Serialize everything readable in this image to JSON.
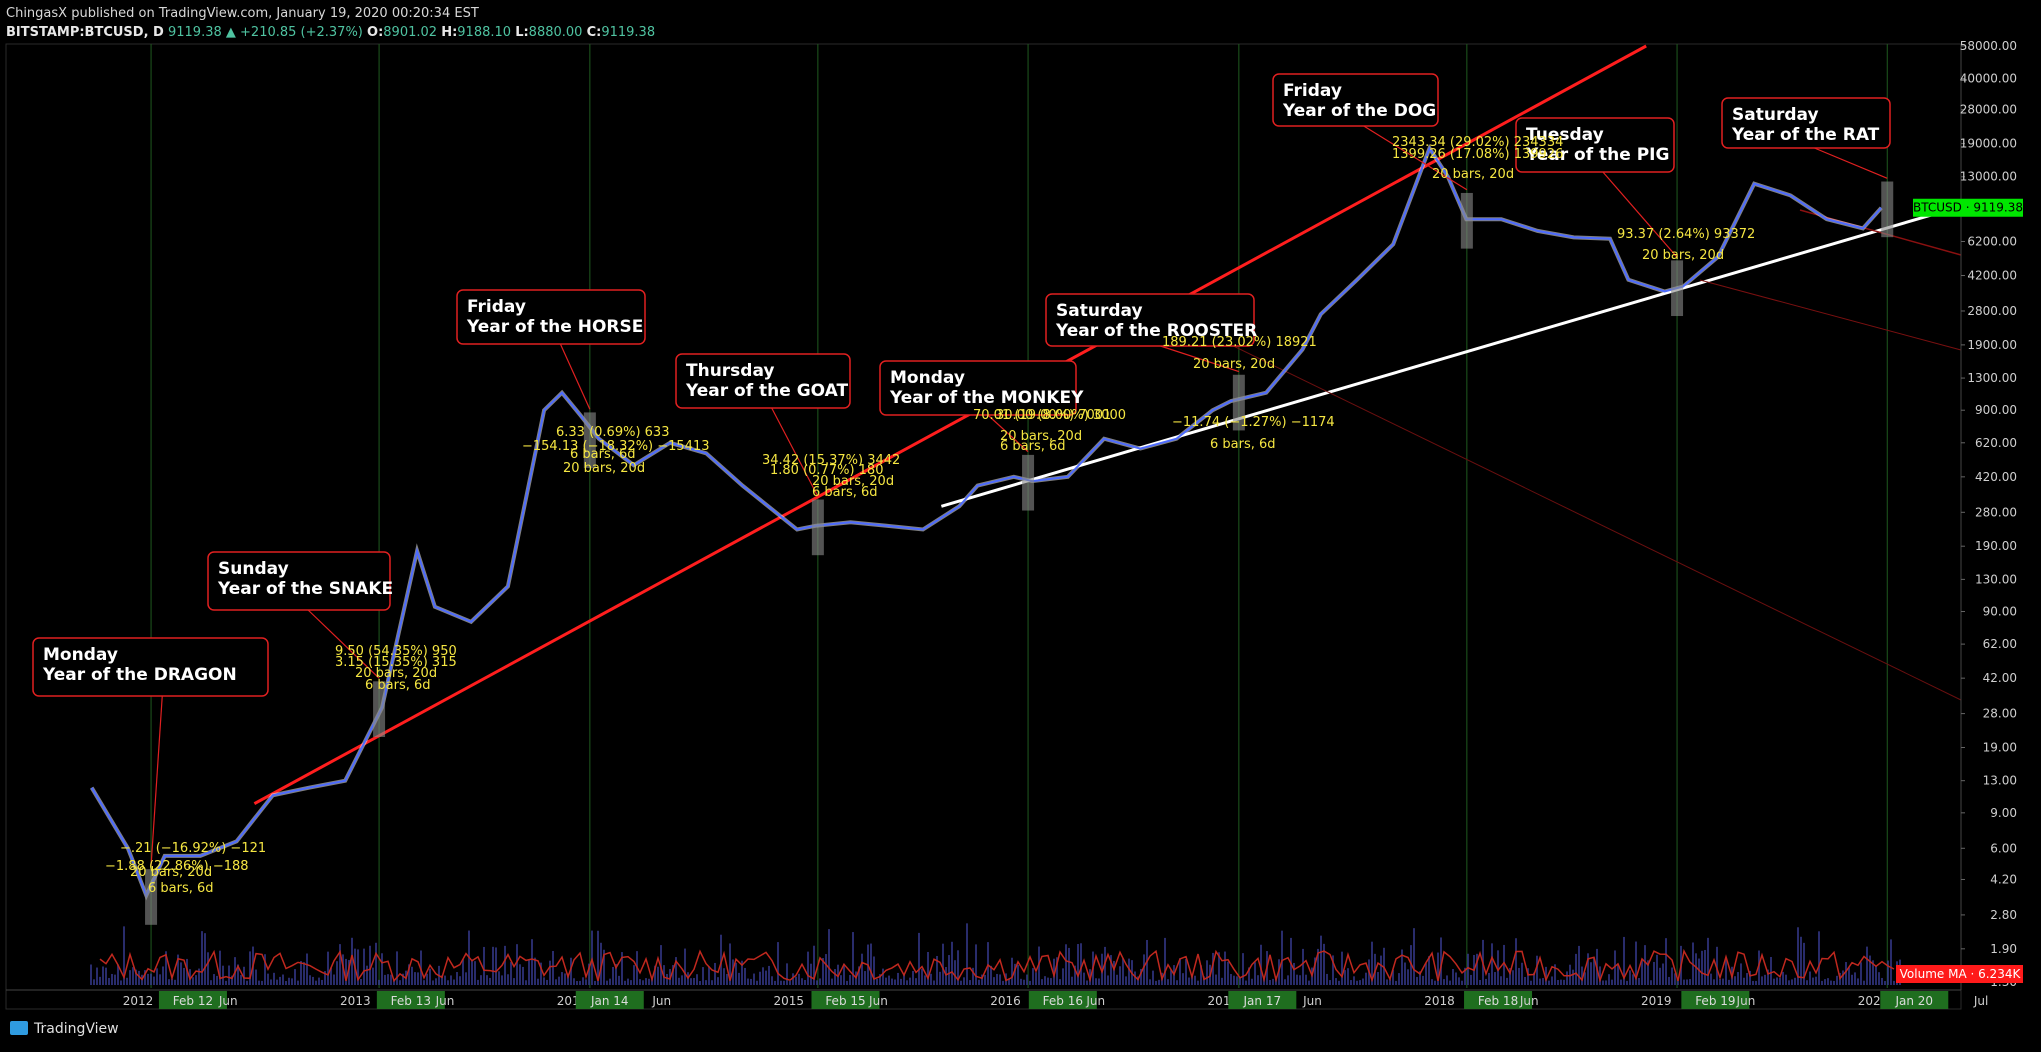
{
  "header": {
    "published": "ChingasX published on TradingView.com, January 19, 2020 00:20:34 EST",
    "symbol": "BITSTAMP:BTCUSD, D",
    "last": "9119.38",
    "change": "+210.85 (+2.37%)",
    "o_label": "O:",
    "o": "8901.02",
    "h_label": "H:",
    "h": "9188.10",
    "l_label": "L:",
    "l": "8880.00",
    "c_label": "C:",
    "c": "9119.38"
  },
  "footer": {
    "brand": "TradingView"
  },
  "colors": {
    "background": "#000000",
    "price": "#4d6bff",
    "uptrend": "#ff1e1e",
    "support": "#ffffff",
    "measure_text": "#f5e642",
    "callout_border": "#e02020",
    "marker": "#8a8a8a",
    "badge_price": "#00e600",
    "badge_volume": "#ff1a1a",
    "volume": "#3a3f9a",
    "volume_ma": "#c0281e",
    "vline": "#1f5a1f"
  },
  "chart_data": {
    "type": "line",
    "title": "",
    "y_scale": "log",
    "y_ticks": [
      "58000.00",
      "40000.00",
      "28000.00",
      "19000.00",
      "13000.00",
      "9000.00",
      "6200.00",
      "4200.00",
      "2800.00",
      "1900.00",
      "1300.00",
      "900.00",
      "620.00",
      "420.00",
      "280.00",
      "190.00",
      "130.00",
      "90.00",
      "62.00",
      "42.00",
      "28.00",
      "19.00",
      "13.00",
      "9.00",
      "6.00",
      "4.20",
      "2.80",
      "1.90",
      "1.30"
    ],
    "x_ticks": [
      "2012",
      "Feb 12",
      "Jun",
      "2013",
      "Feb 13",
      "Jun",
      "2014",
      "Jan 14",
      "Jun",
      "2015",
      "Feb 15",
      "Jun",
      "2016",
      "Feb 16",
      "Jun",
      "2017",
      "Jan 17",
      "Jun",
      "2018",
      "Feb 18",
      "Jun",
      "2019",
      "Feb 19",
      "Jun",
      "2020",
      "Jan 20",
      "Jul"
    ],
    "series": [
      {
        "name": "BTCUSD",
        "x": [
          "2011-10",
          "2011-12",
          "2012-01",
          "2012-02",
          "2012-04",
          "2012-06",
          "2012-08",
          "2012-10",
          "2012-12",
          "2013-02",
          "2013-04",
          "2013-05",
          "2013-07",
          "2013-09",
          "2013-11",
          "2013-12",
          "2014-01",
          "2014-02",
          "2014-04",
          "2014-06",
          "2014-08",
          "2014-10",
          "2015-01",
          "2015-02",
          "2015-04",
          "2015-06",
          "2015-08",
          "2015-10",
          "2015-11",
          "2016-01",
          "2016-02",
          "2016-04",
          "2016-06",
          "2016-08",
          "2016-10",
          "2016-12",
          "2017-01",
          "2017-03",
          "2017-05",
          "2017-06",
          "2017-08",
          "2017-10",
          "2017-12",
          "2018-01",
          "2018-02",
          "2018-04",
          "2018-06",
          "2018-08",
          "2018-10",
          "2018-11",
          "2019-01",
          "2019-02",
          "2019-04",
          "2019-06",
          "2019-08",
          "2019-10",
          "2019-12",
          "2020-01"
        ],
        "values": [
          12,
          6,
          3.5,
          5.5,
          5.5,
          6.5,
          11,
          12,
          13,
          30,
          180,
          95,
          80,
          120,
          900,
          1100,
          850,
          650,
          480,
          620,
          550,
          380,
          230,
          240,
          250,
          240,
          230,
          300,
          380,
          420,
          400,
          420,
          650,
          580,
          650,
          900,
          1000,
          1100,
          1800,
          2700,
          4000,
          6000,
          18000,
          13000,
          8000,
          8000,
          7000,
          6500,
          6400,
          4000,
          3500,
          3700,
          5200,
          12000,
          10500,
          8000,
          7200,
          9119
        ]
      }
    ],
    "uptrend_line": {
      "from": [
        "2012-07",
        10
      ],
      "to": [
        "2018-12",
        58000
      ]
    },
    "support_line": {
      "from": [
        "2015-09",
        300
      ],
      "to": [
        "2020-02",
        8500
      ]
    },
    "callouts": [
      {
        "day": "Monday",
        "year": "Year of the DRAGON",
        "date": "2012-01-23"
      },
      {
        "day": "Sunday",
        "year": "Year of the SNAKE",
        "date": "2013-02-10"
      },
      {
        "day": "Friday",
        "year": "Year of the HORSE",
        "date": "2014-01-31"
      },
      {
        "day": "Thursday",
        "year": "Year of the GOAT",
        "date": "2015-02-19"
      },
      {
        "day": "Monday",
        "year": "Year of the MONKEY",
        "date": "2016-02-08"
      },
      {
        "day": "Saturday",
        "year": "Year of the ROOSTER",
        "date": "2017-01-28"
      },
      {
        "day": "Friday",
        "year": "Year of the DOG",
        "date": "2018-02-16"
      },
      {
        "day": "Tuesday",
        "year": "Year of the PIG",
        "date": "2019-02-05"
      },
      {
        "day": "Saturday",
        "year": "Year of the RAT",
        "date": "2020-01-25"
      }
    ],
    "measurements": [
      "−.21 (−16.92%) −121",
      "−1.88 (22.86%) −188",
      "20 bars, 20d",
      "6 bars, 6d",
      "9.50 (54.35%) 950",
      "3.15 (15.35%) 315",
      "20 bars, 20d",
      "6 bars, 6d",
      "6.33 (0.69%) 633",
      "−154.13 (−18.32%) −15413",
      "6 bars, 6d",
      "20 bars, 20d",
      "34.42 (15.37%) 3442",
      "1.80 (0.77%) 180",
      "20 bars, 20d",
      "6 bars, 6d",
      "70.01 (19.00%) 7001",
      "30.00 (8.00%) 3000",
      "20 bars, 20d",
      "6 bars, 6d",
      "189.21 (23.02%) 18921",
      "20 bars, 20d",
      "−11.74 (−1.27%) −1174",
      "6 bars, 6d",
      "2343.34 (29.02%) 234334",
      "1399.26 (17.08%) 139926",
      "20 bars, 20d",
      "93.37 (2.64%) 93372",
      "20 bars, 20d"
    ],
    "price_badge": "BTCUSD · 9119.38",
    "volume_badge": "Volume MA · 6.234K",
    "legend": "none",
    "grid": false
  }
}
